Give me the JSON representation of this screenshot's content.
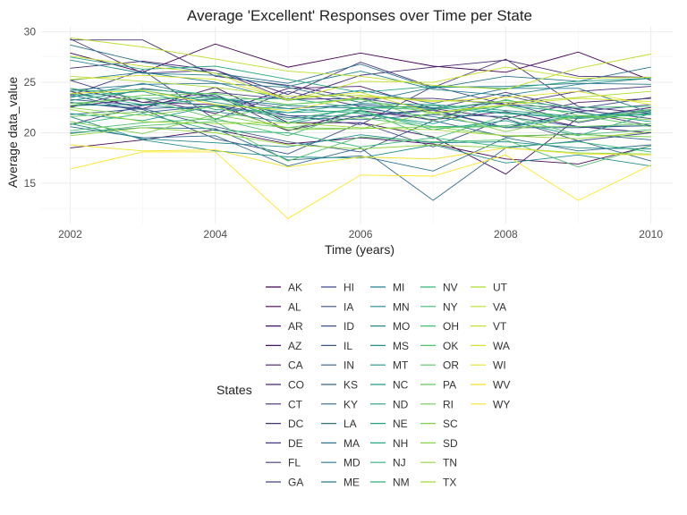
{
  "chart_data": {
    "type": "line",
    "title": "Average 'Excellent' Responses over Time per State",
    "xlabel": "Time (years)",
    "ylabel": "Average data_value",
    "xlim": [
      2001.6,
      2010.3
    ],
    "ylim": [
      11,
      30.5
    ],
    "x_ticks": [
      2002,
      2004,
      2006,
      2008,
      2010
    ],
    "y_ticks": [
      15,
      20,
      25,
      30
    ],
    "grid": true,
    "legend_title": "States",
    "legend_position": "bottom",
    "x": [
      2002,
      2003,
      2004,
      2005,
      2006,
      2007,
      2008,
      2009,
      2010
    ],
    "series": [
      {
        "name": "AK",
        "values": [
          27.9,
          26.0,
          28.8,
          26.5,
          27.9,
          26.6,
          26.0,
          28.0,
          25.2
        ]
      },
      {
        "name": "AL",
        "values": [
          18.5,
          19.3,
          20.3,
          18.9,
          19.5,
          18.9,
          17.4,
          16.9,
          18.7
        ]
      },
      {
        "name": "AR",
        "values": [
          24.1,
          22.4,
          24.5,
          21.0,
          21.0,
          19.6,
          15.9,
          21.5,
          22.5
        ]
      },
      {
        "name": "AZ",
        "values": [
          24.4,
          23.0,
          22.8,
          20.2,
          22.2,
          21.3,
          22.1,
          20.6,
          20.0
        ]
      },
      {
        "name": "CA",
        "values": [
          22.6,
          23.4,
          21.9,
          24.4,
          24.6,
          22.4,
          21.4,
          23.0,
          23.4
        ]
      },
      {
        "name": "CO",
        "values": [
          26.4,
          27.1,
          26.2,
          23.3,
          25.7,
          26.5,
          27.2,
          25.6,
          25.5
        ]
      },
      {
        "name": "CT",
        "values": [
          29.2,
          29.2,
          25.6,
          24.7,
          23.4,
          23.4,
          22.8,
          24.1,
          24.6
        ]
      },
      {
        "name": "DC",
        "values": [
          29.3,
          25.9,
          26.2,
          23.8,
          27.0,
          24.5,
          27.3,
          22.6,
          21.9
        ]
      },
      {
        "name": "DE",
        "values": [
          20.8,
          22.7,
          23.8,
          20.2,
          21.7,
          22.3,
          20.5,
          22.1,
          20.7
        ]
      },
      {
        "name": "FL",
        "values": [
          25.2,
          23.0,
          24.0,
          23.3,
          23.4,
          22.4,
          24.0,
          22.3,
          21.4
        ]
      },
      {
        "name": "GA",
        "values": [
          23.7,
          26.2,
          21.3,
          24.1,
          22.6,
          21.2,
          23.7,
          22.1,
          22.8
        ]
      },
      {
        "name": "HI",
        "values": [
          22.5,
          24.4,
          23.6,
          21.7,
          20.8,
          24.6,
          22.8,
          22.4,
          23.5
        ]
      },
      {
        "name": "IA",
        "values": [
          23.0,
          22.3,
          19.4,
          17.9,
          21.0,
          18.6,
          21.4,
          19.2,
          20.0
        ]
      },
      {
        "name": "ID",
        "values": [
          23.3,
          22.7,
          23.4,
          22.4,
          22.8,
          22.4,
          23.0,
          21.0,
          22.2
        ]
      },
      {
        "name": "IL",
        "values": [
          23.8,
          22.0,
          22.7,
          21.7,
          21.6,
          22.2,
          20.5,
          20.5,
          20.7
        ]
      },
      {
        "name": "IN",
        "values": [
          21.8,
          22.4,
          20.6,
          19.1,
          18.1,
          21.2,
          19.6,
          19.9,
          19.3
        ]
      },
      {
        "name": "KS",
        "values": [
          23.0,
          22.4,
          22.6,
          21.5,
          21.3,
          21.8,
          21.6,
          20.6,
          20.7
        ]
      },
      {
        "name": "KY",
        "values": [
          20.6,
          19.5,
          19.7,
          16.7,
          18.5,
          13.3,
          18.5,
          19.2,
          17.2
        ]
      },
      {
        "name": "LA",
        "values": [
          20.0,
          20.5,
          20.4,
          17.3,
          17.7,
          16.2,
          19.5,
          18.2,
          18.8
        ]
      },
      {
        "name": "MA",
        "values": [
          28.7,
          27.0,
          25.9,
          24.9,
          26.8,
          24.4,
          25.6,
          25.1,
          26.5
        ]
      },
      {
        "name": "MD",
        "values": [
          24.2,
          24.8,
          24.9,
          24.5,
          23.0,
          24.5,
          24.6,
          24.9,
          24.8
        ]
      },
      {
        "name": "ME",
        "values": [
          25.2,
          26.0,
          25.0,
          23.2,
          24.2,
          22.9,
          24.4,
          24.4,
          22.0
        ]
      },
      {
        "name": "MI",
        "values": [
          23.5,
          24.9,
          23.4,
          22.7,
          22.4,
          21.6,
          20.5,
          21.6,
          22.3
        ]
      },
      {
        "name": "MN",
        "values": [
          27.2,
          25.9,
          25.7,
          24.6,
          26.1,
          24.3,
          23.7,
          24.8,
          25.4
        ]
      },
      {
        "name": "MO",
        "values": [
          20.9,
          19.4,
          19.0,
          18.6,
          19.8,
          19.0,
          19.1,
          18.5,
          18.4
        ]
      },
      {
        "name": "MS",
        "values": [
          21.6,
          19.3,
          18.2,
          17.6,
          17.5,
          18.8,
          17.0,
          17.8,
          16.7
        ]
      },
      {
        "name": "MT",
        "values": [
          22.7,
          22.8,
          22.1,
          21.0,
          22.6,
          22.5,
          21.9,
          21.4,
          21.9
        ]
      },
      {
        "name": "NC",
        "values": [
          23.2,
          24.2,
          23.0,
          22.0,
          22.9,
          22.8,
          22.2,
          21.6,
          22.1
        ]
      },
      {
        "name": "ND",
        "values": [
          21.9,
          21.2,
          22.7,
          22.4,
          21.9,
          20.9,
          22.7,
          22.0,
          21.1
        ]
      },
      {
        "name": "NE",
        "values": [
          23.6,
          24.1,
          22.3,
          22.0,
          22.2,
          20.3,
          21.2,
          19.7,
          21.9
        ]
      },
      {
        "name": "NH",
        "values": [
          27.5,
          26.3,
          26.6,
          25.3,
          24.0,
          24.6,
          24.4,
          25.1,
          25.4
        ]
      },
      {
        "name": "NJ",
        "values": [
          23.9,
          22.8,
          23.3,
          23.4,
          22.4,
          22.7,
          22.0,
          21.5,
          21.8
        ]
      },
      {
        "name": "NM",
        "values": [
          24.1,
          24.3,
          23.8,
          20.9,
          22.1,
          20.6,
          20.7,
          21.7,
          21.8
        ]
      },
      {
        "name": "NV",
        "values": [
          20.8,
          21.9,
          20.2,
          20.0,
          18.6,
          19.5,
          18.6,
          19.1,
          18.1
        ]
      },
      {
        "name": "NY",
        "values": [
          24.4,
          23.4,
          23.5,
          21.3,
          22.5,
          22.3,
          23.2,
          22.5,
          22.6
        ]
      },
      {
        "name": "OH",
        "values": [
          20.2,
          21.0,
          21.4,
          19.7,
          22.3,
          19.4,
          21.7,
          19.8,
          20.3
        ]
      },
      {
        "name": "OK",
        "values": [
          19.9,
          20.7,
          21.1,
          17.2,
          19.6,
          19.1,
          19.3,
          16.6,
          18.7
        ]
      },
      {
        "name": "OR",
        "values": [
          22.9,
          23.4,
          21.4,
          22.8,
          23.4,
          21.2,
          23.3,
          21.7,
          20.6
        ]
      },
      {
        "name": "PA",
        "values": [
          21.6,
          22.1,
          21.2,
          20.5,
          21.5,
          20.5,
          20.6,
          20.6,
          20.9
        ]
      },
      {
        "name": "RI",
        "values": [
          22.7,
          23.7,
          23.9,
          22.8,
          23.3,
          21.9,
          22.7,
          21.1,
          22.3
        ]
      },
      {
        "name": "SC",
        "values": [
          21.1,
          19.9,
          21.8,
          20.5,
          20.4,
          20.6,
          19.7,
          19.8,
          19.6
        ]
      },
      {
        "name": "SD",
        "values": [
          22.5,
          21.7,
          22.6,
          20.3,
          20.4,
          22.0,
          20.1,
          21.7,
          21.3
        ]
      },
      {
        "name": "TN",
        "values": [
          19.7,
          20.5,
          20.0,
          18.8,
          18.4,
          18.8,
          18.5,
          18.0,
          17.9
        ]
      },
      {
        "name": "TX",
        "values": [
          22.3,
          21.1,
          20.9,
          21.0,
          20.5,
          20.3,
          19.7,
          19.4,
          20.1
        ]
      },
      {
        "name": "UT",
        "values": [
          25.6,
          25.1,
          24.5,
          23.6,
          23.7,
          23.2,
          23.0,
          23.5,
          24.1
        ]
      },
      {
        "name": "VA",
        "values": [
          29.4,
          28.5,
          27.3,
          26.1,
          25.6,
          24.7,
          24.3,
          26.4,
          27.8
        ]
      },
      {
        "name": "VT",
        "values": [
          27.6,
          26.6,
          25.9,
          23.2,
          25.1,
          25.0,
          26.5,
          25.4,
          25.5
        ]
      },
      {
        "name": "WA",
        "values": [
          25.3,
          25.7,
          25.3,
          23.3,
          24.0,
          22.0,
          22.8,
          23.4,
          23.1
        ]
      },
      {
        "name": "WI",
        "values": [
          23.9,
          24.2,
          22.8,
          22.2,
          23.6,
          23.1,
          23.5,
          24.1,
          22.8
        ]
      },
      {
        "name": "WV",
        "values": [
          18.8,
          18.2,
          18.3,
          16.6,
          17.6,
          17.4,
          18.5,
          17.9,
          17.8
        ]
      },
      {
        "name": "WY",
        "values": [
          16.4,
          18.1,
          18.1,
          11.5,
          15.8,
          15.7,
          17.8,
          13.3,
          16.8
        ]
      }
    ]
  }
}
